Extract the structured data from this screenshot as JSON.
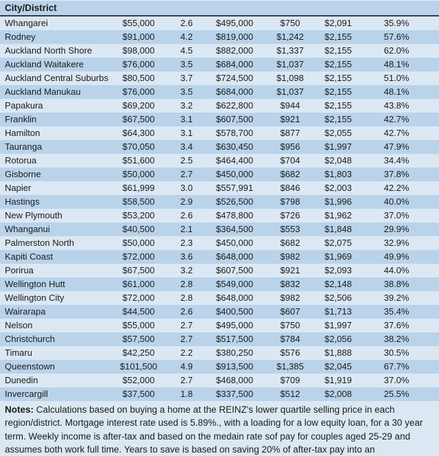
{
  "chart_data": {
    "type": "table",
    "header": "City/District",
    "rows": [
      [
        "Whangarei",
        "$55,000",
        "2.6",
        "$495,000",
        "$750",
        "$2,091",
        "35.9%"
      ],
      [
        "Rodney",
        "$91,000",
        "4.2",
        "$819,000",
        "$1,242",
        "$2,155",
        "57.6%"
      ],
      [
        "Auckland North Shore",
        "$98,000",
        "4.5",
        "$882,000",
        "$1,337",
        "$2,155",
        "62.0%"
      ],
      [
        "Auckland Waitakere",
        "$76,000",
        "3.5",
        "$684,000",
        "$1,037",
        "$2,155",
        "48.1%"
      ],
      [
        "Auckland Central Suburbs",
        "$80,500",
        "3.7",
        "$724,500",
        "$1,098",
        "$2,155",
        "51.0%"
      ],
      [
        "Auckland Manukau",
        "$76,000",
        "3.5",
        "$684,000",
        "$1,037",
        "$2,155",
        "48.1%"
      ],
      [
        "Papakura",
        "$69,200",
        "3.2",
        "$622,800",
        "$944",
        "$2,155",
        "43.8%"
      ],
      [
        "Franklin",
        "$67,500",
        "3.1",
        "$607,500",
        "$921",
        "$2,155",
        "42.7%"
      ],
      [
        "Hamilton",
        "$64,300",
        "3.1",
        "$578,700",
        "$877",
        "$2,055",
        "42.7%"
      ],
      [
        "Tauranga",
        "$70,050",
        "3.4",
        "$630,450",
        "$956",
        "$1,997",
        "47.9%"
      ],
      [
        "Rotorua",
        "$51,600",
        "2.5",
        "$464,400",
        "$704",
        "$2,048",
        "34.4%"
      ],
      [
        "Gisborne",
        "$50,000",
        "2.7",
        "$450,000",
        "$682",
        "$1,803",
        "37.8%"
      ],
      [
        "Napier",
        "$61,999",
        "3.0",
        "$557,991",
        "$846",
        "$2,003",
        "42.2%"
      ],
      [
        "Hastings",
        "$58,500",
        "2.9",
        "$526,500",
        "$798",
        "$1,996",
        "40.0%"
      ],
      [
        "New Plymouth",
        "$53,200",
        "2.6",
        "$478,800",
        "$726",
        "$1,962",
        "37.0%"
      ],
      [
        "Whanganui",
        "$40,500",
        "2.1",
        "$364,500",
        "$553",
        "$1,848",
        "29.9%"
      ],
      [
        "Palmerston North",
        "$50,000",
        "2.3",
        "$450,000",
        "$682",
        "$2,075",
        "32.9%"
      ],
      [
        "Kapiti Coast",
        "$72,000",
        "3.6",
        "$648,000",
        "$982",
        "$1,969",
        "49.9%"
      ],
      [
        "Porirua",
        "$67,500",
        "3.2",
        "$607,500",
        "$921",
        "$2,093",
        "44.0%"
      ],
      [
        "Wellington Hutt",
        "$61,000",
        "2.8",
        "$549,000",
        "$832",
        "$2,148",
        "38.8%"
      ],
      [
        "Wellington City",
        "$72,000",
        "2.8",
        "$648,000",
        "$982",
        "$2,506",
        "39.2%"
      ],
      [
        "Wairarapa",
        "$44,500",
        "2.6",
        "$400,500",
        "$607",
        "$1,713",
        "35.4%"
      ],
      [
        "Nelson",
        "$55,000",
        "2.7",
        "$495,000",
        "$750",
        "$1,997",
        "37.6%"
      ],
      [
        "Christchurch",
        "$57,500",
        "2.7",
        "$517,500",
        "$784",
        "$2,056",
        "38.2%"
      ],
      [
        "Timaru",
        "$42,250",
        "2.2",
        "$380,250",
        "$576",
        "$1,888",
        "30.5%"
      ],
      [
        "Queenstown",
        "$101,500",
        "4.9",
        "$913,500",
        "$1,385",
        "$2,045",
        "67.7%"
      ],
      [
        "Dunedin",
        "$52,000",
        "2.7",
        "$468,000",
        "$709",
        "$1,919",
        "37.0%"
      ],
      [
        "Invercargill",
        "$37,500",
        "1.8",
        "$337,500",
        "$512",
        "$2,008",
        "25.5%"
      ]
    ]
  },
  "notes": {
    "label": "Notes:",
    "text": "Calculations based on buying a home at the REINZ's lower quartile selling price in each region/district. Mortgage interest rate used is 5.89%., with a loading for a low equity loan, for a 30 year term. Weekly income is after-tax and based on the medain rate sof pay for couples aged 25-29 and assumes both work full time. Years to save is based on saving 20% of after-tax pay into an"
  },
  "colors": {
    "row_light": "#dbe8f4",
    "row_medium": "#b9d3ea",
    "header_border": "#333d4b"
  }
}
